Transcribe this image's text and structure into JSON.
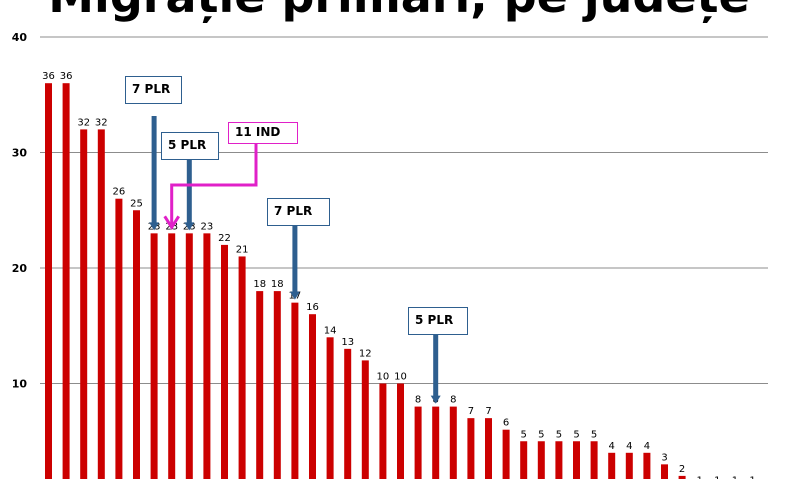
{
  "title": "Migrație primari, pe județe",
  "chart_data": {
    "type": "bar",
    "ylim": [
      0,
      40
    ],
    "yticks": [
      10,
      20,
      30,
      40
    ],
    "grid": true,
    "values": [
      36,
      36,
      32,
      32,
      26,
      25,
      23,
      23,
      23,
      23,
      22,
      21,
      18,
      18,
      17,
      16,
      14,
      13,
      12,
      10,
      10,
      8,
      8,
      8,
      7,
      7,
      6,
      5,
      5,
      5,
      5,
      5,
      4,
      4,
      4,
      3,
      2,
      1,
      1,
      1,
      1
    ],
    "bar_color": "#cc0000",
    "callouts": [
      {
        "label": "7 PLR",
        "bar_index": 6,
        "color": "#2e5f8f"
      },
      {
        "label": "5 PLR",
        "bar_index": 8,
        "color": "#2e5f8f"
      },
      {
        "label": "11 IND",
        "bar_index": 7,
        "color": "#e020c8"
      },
      {
        "label": "7 PLR",
        "bar_index": 14,
        "color": "#2e5f8f"
      },
      {
        "label": "5 PLR",
        "bar_index": 22,
        "color": "#2e5f8f"
      }
    ]
  }
}
